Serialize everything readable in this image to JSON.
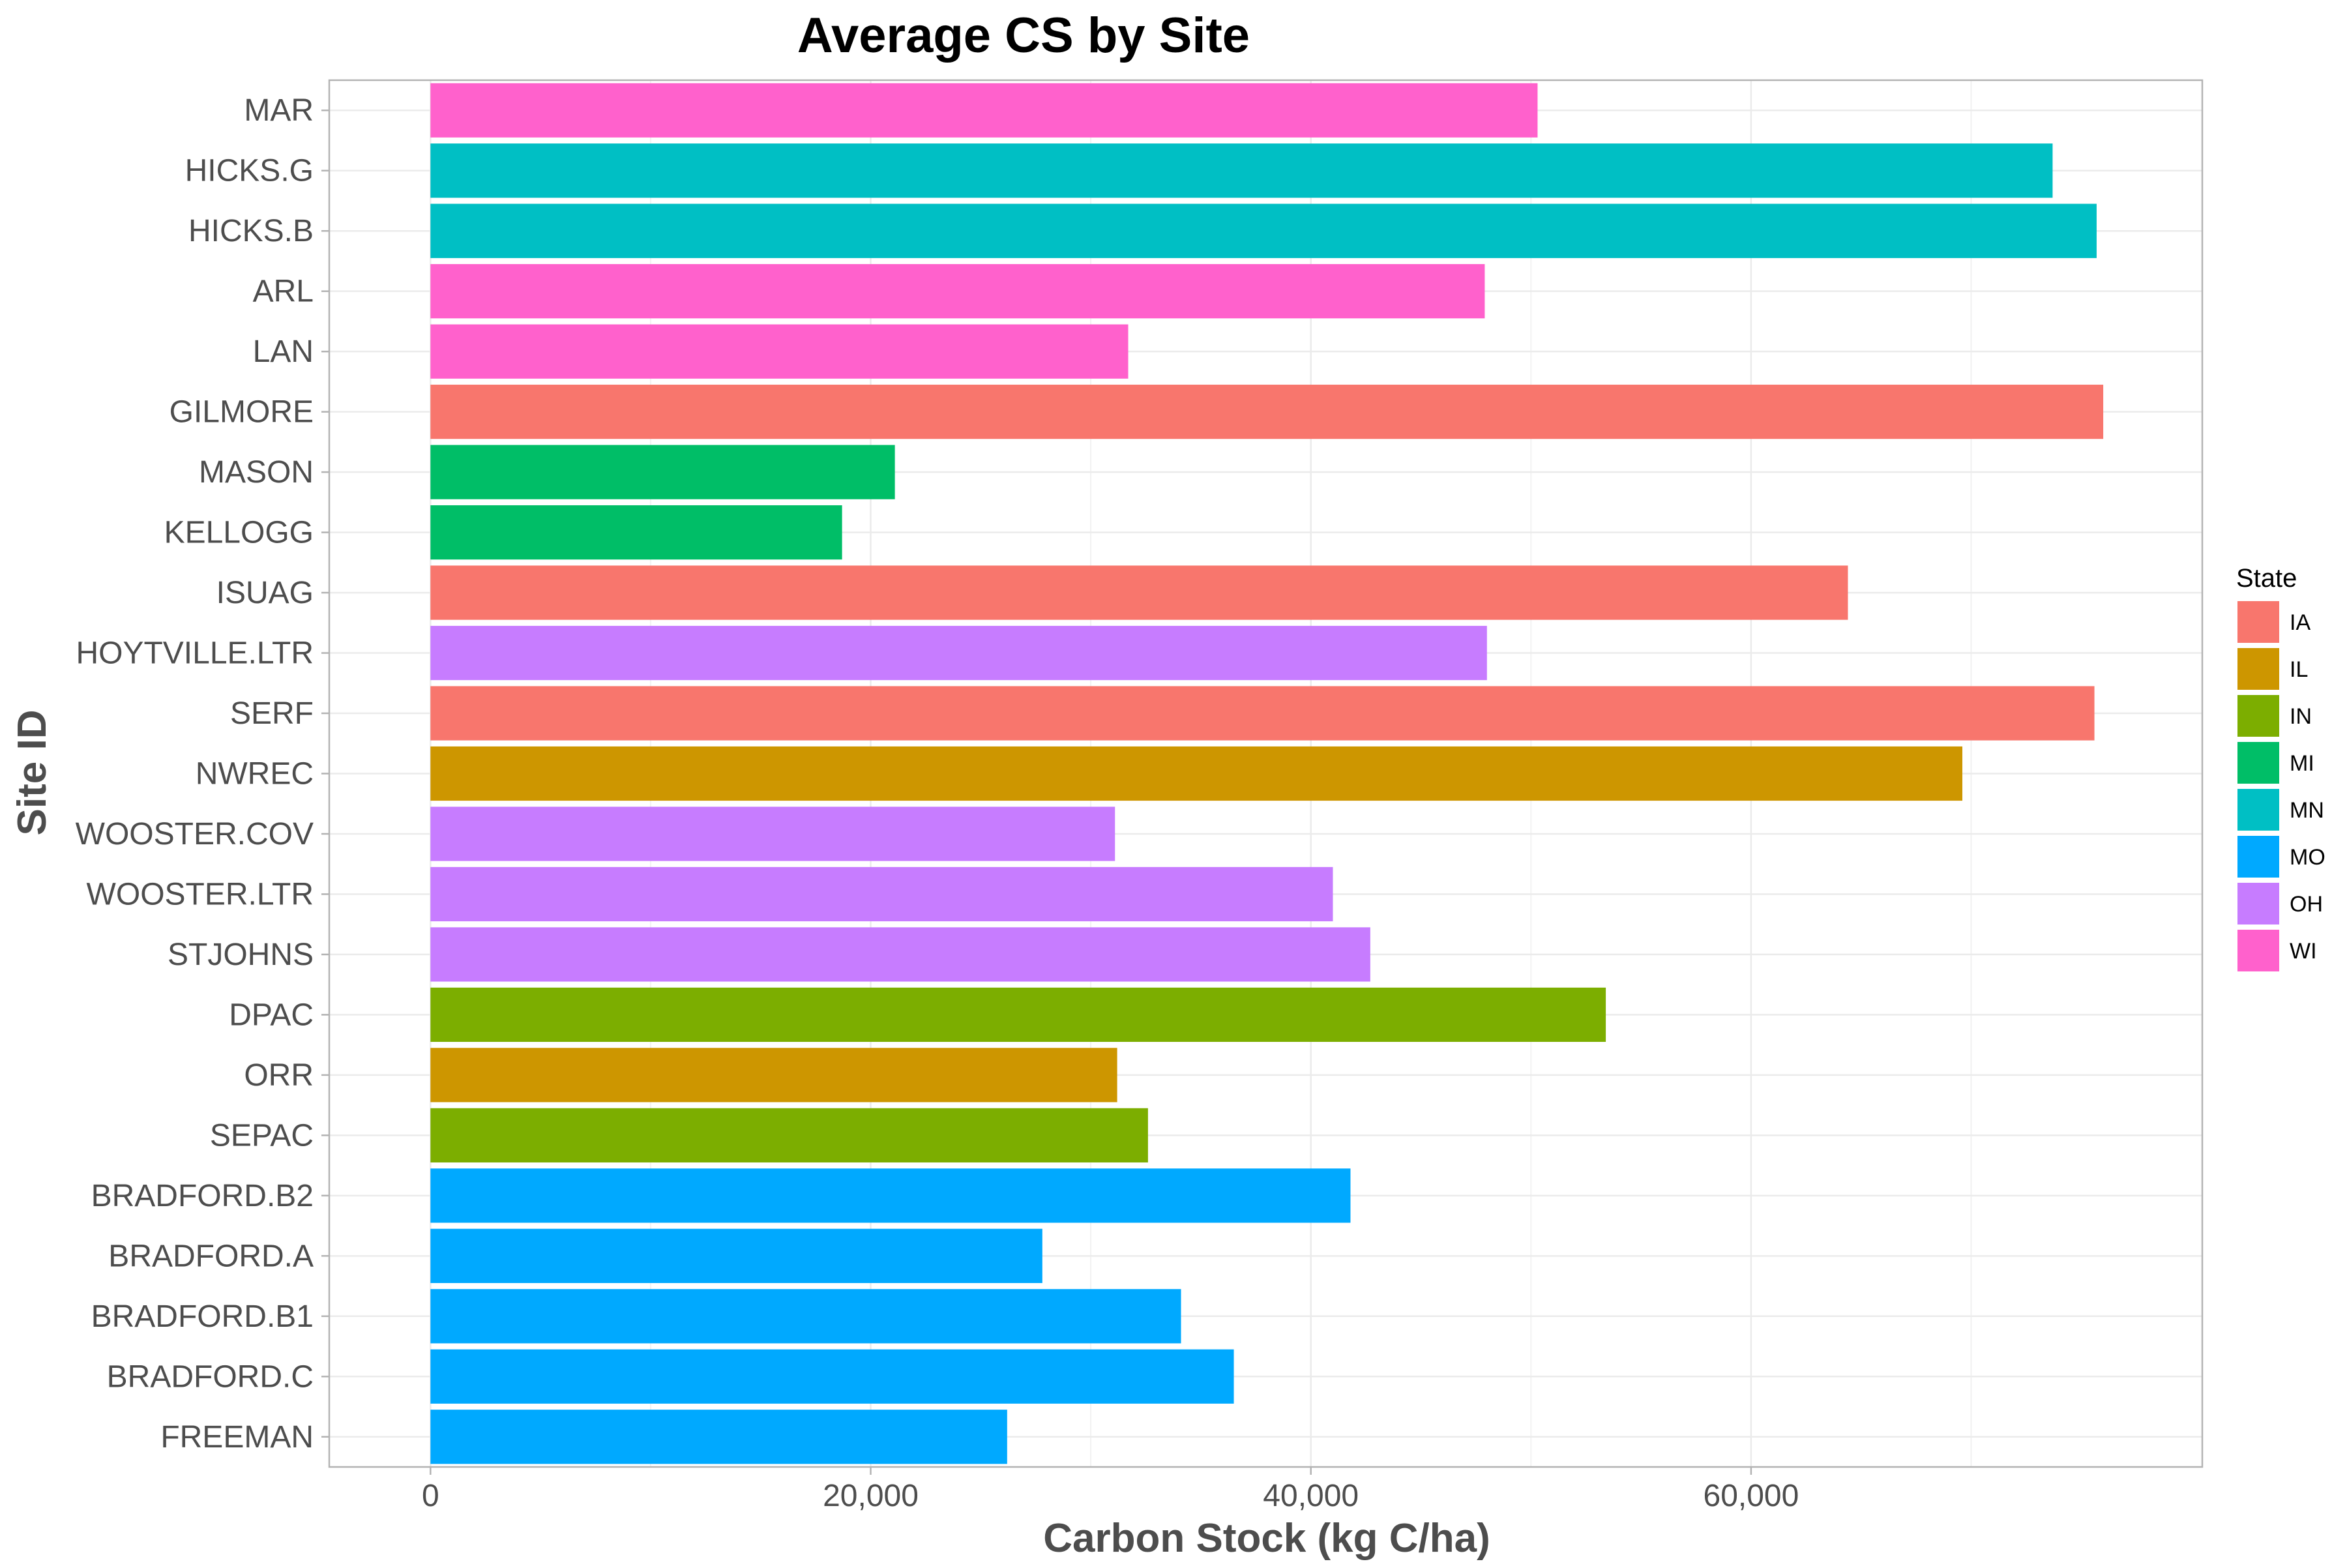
{
  "chart_data": {
    "type": "bar",
    "orientation": "horizontal",
    "title": "Average CS by Site",
    "xlabel": "Carbon Stock (kg C/ha)",
    "ylabel": "Site ID",
    "xlim": [
      -4600,
      80500
    ],
    "x_ticks": [
      0,
      20000,
      40000,
      60000
    ],
    "x_tick_labels": [
      "0",
      "20,000",
      "40,000",
      "60,000"
    ],
    "grid": true,
    "legend": {
      "title": "State",
      "position": "right",
      "entries": [
        {
          "label": "IA",
          "color": "#F8766D"
        },
        {
          "label": "IL",
          "color": "#CD9600"
        },
        {
          "label": "IN",
          "color": "#7CAE00"
        },
        {
          "label": "MI",
          "color": "#00BE67"
        },
        {
          "label": "MN",
          "color": "#00BFC4"
        },
        {
          "label": "MO",
          "color": "#00A9FF"
        },
        {
          "label": "OH",
          "color": "#C77CFF"
        },
        {
          "label": "WI",
          "color": "#FF61CC"
        }
      ]
    },
    "bars": [
      {
        "site": "MAR",
        "state": "WI",
        "value": 50300
      },
      {
        "site": "HICKS.G",
        "state": "MN",
        "value": 73700
      },
      {
        "site": "HICKS.B",
        "state": "MN",
        "value": 75700
      },
      {
        "site": "ARL",
        "state": "WI",
        "value": 47900
      },
      {
        "site": "LAN",
        "state": "WI",
        "value": 31700
      },
      {
        "site": "GILMORE",
        "state": "IA",
        "value": 76000
      },
      {
        "site": "MASON",
        "state": "MI",
        "value": 21100
      },
      {
        "site": "KELLOGG",
        "state": "MI",
        "value": 18700
      },
      {
        "site": "ISUAG",
        "state": "IA",
        "value": 64400
      },
      {
        "site": "HOYTVILLE.LTR",
        "state": "OH",
        "value": 48000
      },
      {
        "site": "SERF",
        "state": "IA",
        "value": 75600
      },
      {
        "site": "NWREC",
        "state": "IL",
        "value": 69600
      },
      {
        "site": "WOOSTER.COV",
        "state": "OH",
        "value": 31100
      },
      {
        "site": "WOOSTER.LTR",
        "state": "OH",
        "value": 41000
      },
      {
        "site": "STJOHNS",
        "state": "OH",
        "value": 42700
      },
      {
        "site": "DPAC",
        "state": "IN",
        "value": 53400
      },
      {
        "site": "ORR",
        "state": "IL",
        "value": 31200
      },
      {
        "site": "SEPAC",
        "state": "IN",
        "value": 32600
      },
      {
        "site": "BRADFORD.B2",
        "state": "MO",
        "value": 41800
      },
      {
        "site": "BRADFORD.A",
        "state": "MO",
        "value": 27800
      },
      {
        "site": "BRADFORD.B1",
        "state": "MO",
        "value": 34100
      },
      {
        "site": "BRADFORD.C",
        "state": "MO",
        "value": 36500
      },
      {
        "site": "FREEMAN",
        "state": "MO",
        "value": 26200
      }
    ]
  }
}
